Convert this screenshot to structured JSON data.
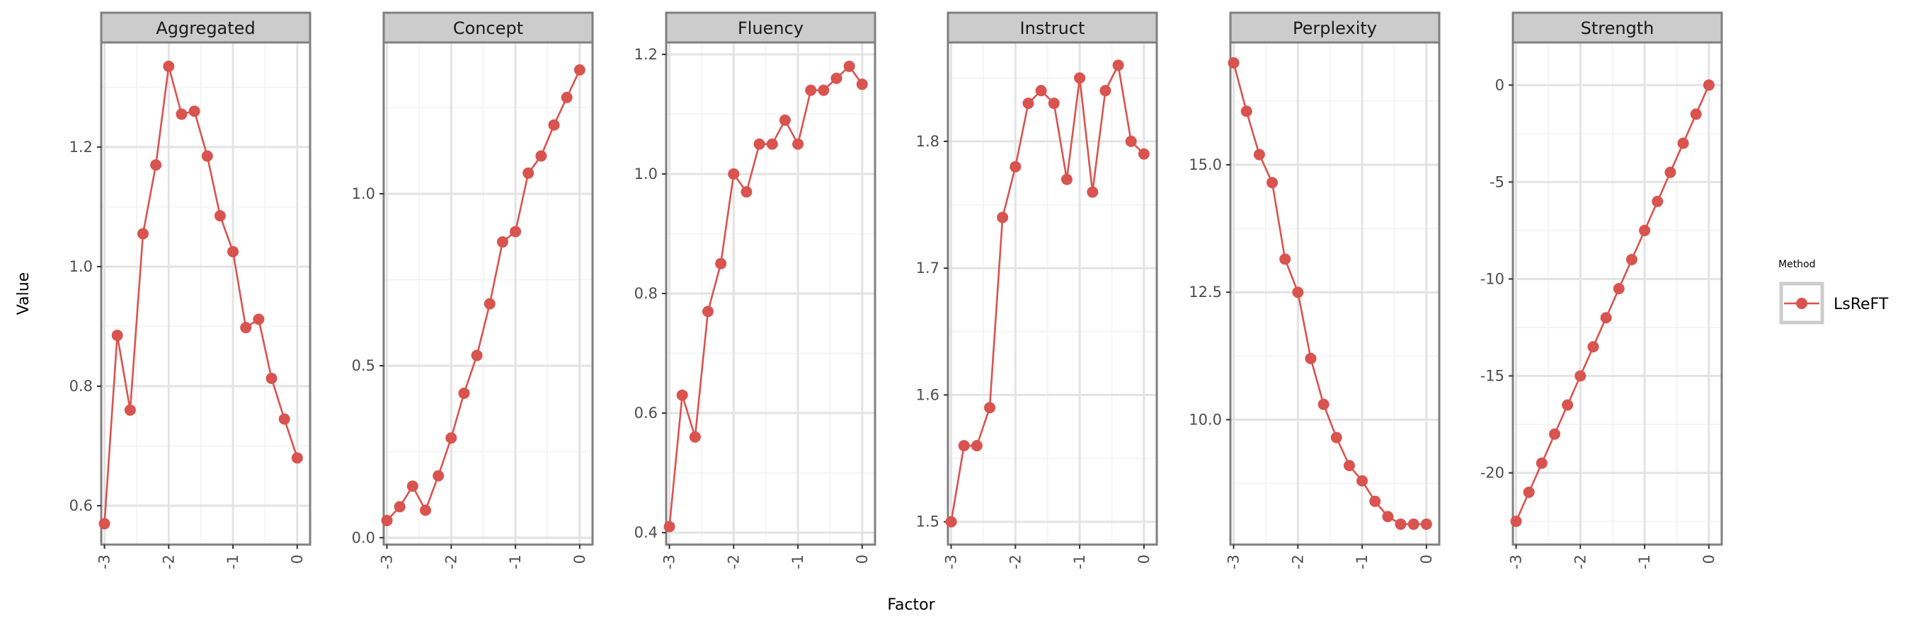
{
  "chart_data": {
    "type": "line",
    "xlabel": "Factor",
    "ylabel": "Value",
    "legend": {
      "title": "Method",
      "entries": [
        "LsReFT"
      ],
      "placement": "right"
    },
    "colors": {
      "series": "#d9534f",
      "strip_bg": "#cccccc",
      "border": "#7f7f7f",
      "grid_major": "#e3e3e3",
      "grid_minor": "#f2f2f2"
    },
    "x": [
      -3.0,
      -2.8,
      -2.6,
      -2.4,
      -2.2,
      -2.0,
      -1.8,
      -1.6,
      -1.4,
      -1.2,
      -1.0,
      -0.8,
      -0.6,
      -0.4,
      -0.2,
      0.0
    ],
    "xlim": [
      -3.05,
      0.2
    ],
    "x_ticks": [
      -3,
      -2,
      -1,
      0
    ],
    "x_tick_labels": [
      "-3",
      "-2",
      "-1",
      "0"
    ],
    "panels": [
      {
        "title": "Aggregated",
        "series": [
          {
            "name": "LsReFT",
            "values": [
              0.57,
              0.885,
              0.76,
              1.055,
              1.17,
              1.335,
              1.255,
              1.26,
              1.185,
              1.085,
              1.025,
              0.898,
              0.912,
              0.813,
              0.745,
              0.68
            ]
          }
        ],
        "ylim": [
          0.535,
          1.375
        ],
        "y_ticks": [
          0.6,
          0.8,
          1.0,
          1.2
        ],
        "y_tick_labels": [
          "0.6",
          "0.8",
          "1.0",
          "1.2"
        ],
        "y_minor": [
          0.7,
          0.9,
          1.1,
          1.3
        ]
      },
      {
        "title": "Concept",
        "series": [
          {
            "name": "LsReFT",
            "values": [
              0.05,
              0.09,
              0.15,
              0.08,
              0.18,
              0.29,
              0.42,
              0.53,
              0.68,
              0.86,
              0.89,
              1.06,
              1.11,
              1.2,
              1.28,
              1.36
            ]
          }
        ],
        "ylim": [
          -0.02,
          1.44
        ],
        "y_ticks": [
          0.0,
          0.5,
          1.0
        ],
        "y_tick_labels": [
          "0.0",
          "0.5",
          "1.0"
        ],
        "y_minor": [
          0.25,
          0.75,
          1.25
        ]
      },
      {
        "title": "Fluency",
        "series": [
          {
            "name": "LsReFT",
            "values": [
              0.41,
              0.63,
              0.56,
              0.77,
              0.85,
              1.0,
              0.97,
              1.05,
              1.05,
              1.09,
              1.05,
              1.14,
              1.14,
              1.16,
              1.18,
              1.15
            ]
          }
        ],
        "ylim": [
          0.38,
          1.22
        ],
        "y_ticks": [
          0.4,
          0.6,
          0.8,
          1.0,
          1.2
        ],
        "y_tick_labels": [
          "0.4",
          "0.6",
          "0.8",
          "1.0",
          "1.2"
        ],
        "y_minor": [
          0.5,
          0.7,
          0.9,
          1.1
        ]
      },
      {
        "title": "Instruct",
        "series": [
          {
            "name": "LsReFT",
            "values": [
              1.5,
              1.56,
              1.56,
              1.59,
              1.74,
              1.78,
              1.83,
              1.84,
              1.83,
              1.77,
              1.85,
              1.76,
              1.84,
              1.86,
              1.8,
              1.79
            ]
          }
        ],
        "ylim": [
          1.482,
          1.878
        ],
        "y_ticks": [
          1.5,
          1.6,
          1.7,
          1.8
        ],
        "y_tick_labels": [
          "1.5",
          "1.6",
          "1.7",
          "1.8"
        ],
        "y_minor": [
          1.55,
          1.65,
          1.75,
          1.85
        ]
      },
      {
        "title": "Perplexity",
        "series": [
          {
            "name": "LsReFT",
            "values": [
              17.0,
              16.05,
              15.2,
              14.65,
              13.15,
              12.5,
              11.2,
              10.3,
              9.65,
              9.1,
              8.8,
              8.4,
              8.1,
              7.95,
              7.95,
              7.95
            ]
          }
        ],
        "ylim": [
          7.55,
          17.4
        ],
        "y_ticks": [
          10.0,
          12.5,
          15.0
        ],
        "y_tick_labels": [
          "10.0",
          "12.5",
          "15.0"
        ],
        "y_minor": [
          8.75,
          11.25,
          13.75,
          16.25
        ]
      },
      {
        "title": "Strength",
        "series": [
          {
            "name": "LsReFT",
            "values": [
              -22.5,
              -21.0,
              -19.5,
              -18.0,
              -16.5,
              -15.0,
              -13.5,
              -12.0,
              -10.5,
              -9.0,
              -7.5,
              -6.0,
              -4.5,
              -3.0,
              -1.5,
              0.0
            ]
          }
        ],
        "ylim": [
          -23.7,
          2.2
        ],
        "y_ticks": [
          -20,
          -15,
          -10,
          -5,
          0
        ],
        "y_tick_labels": [
          "-20",
          "-15",
          "-10",
          "-5",
          "0"
        ],
        "y_minor": [
          -22.5,
          -17.5,
          -12.5,
          -7.5,
          -2.5
        ]
      }
    ]
  }
}
